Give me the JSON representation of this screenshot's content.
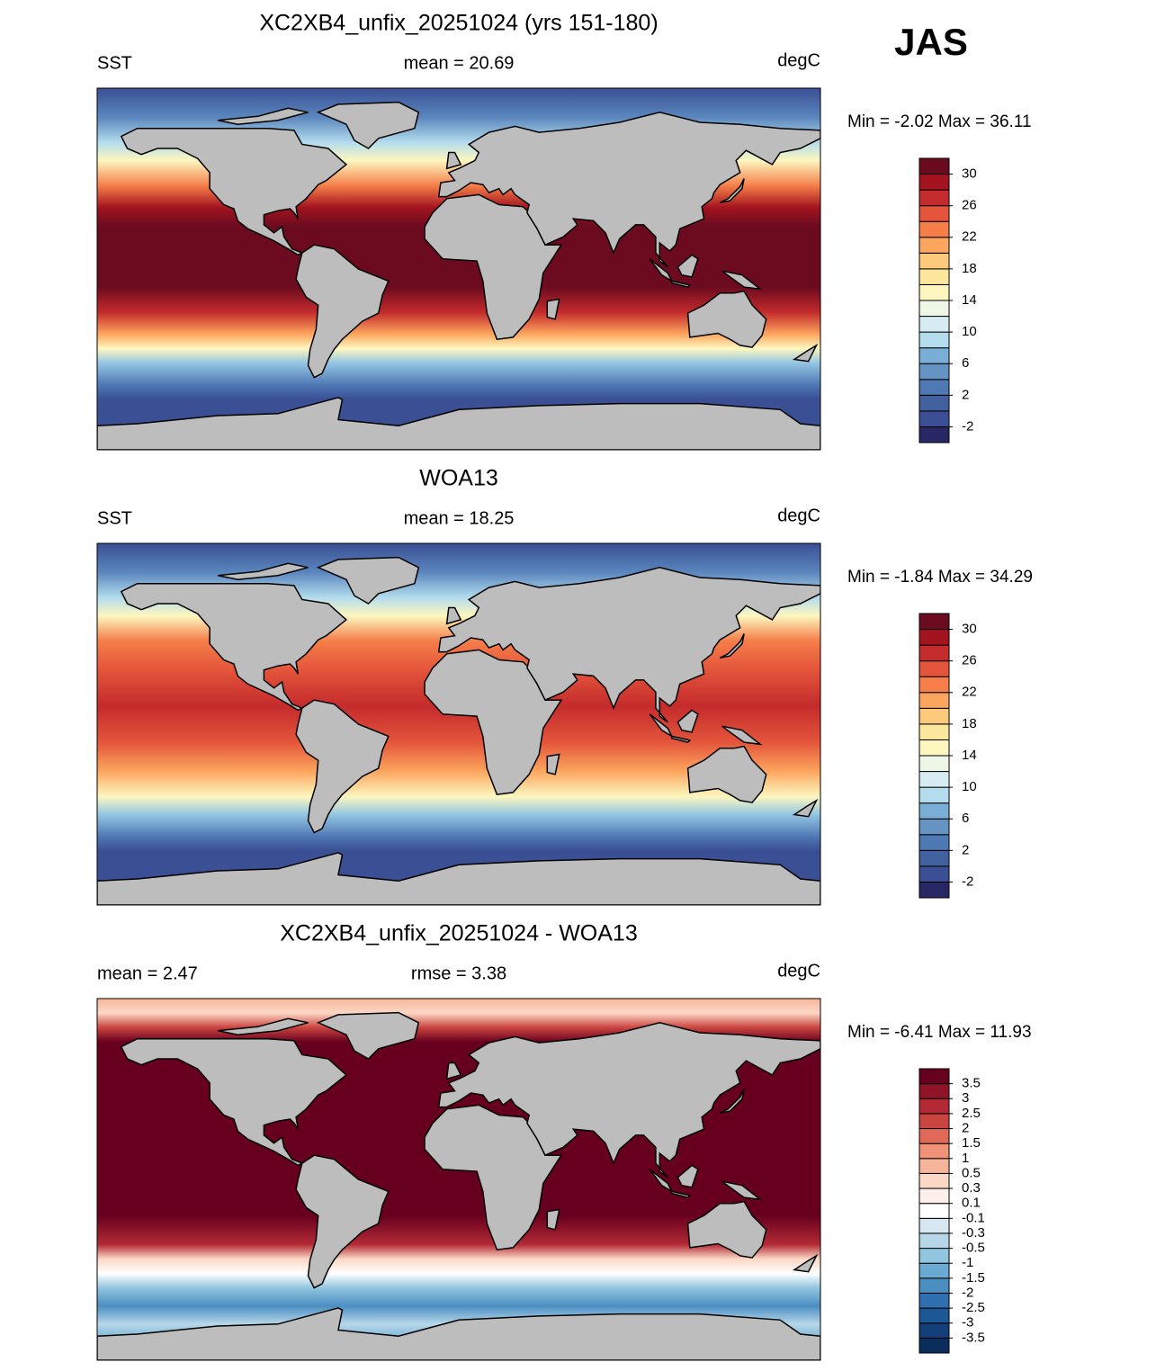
{
  "header": {
    "season": "JAS"
  },
  "panels": [
    {
      "title": "XC2XB4_unfix_20251024 (yrs 151-180)",
      "left_label": "SST",
      "center_label": "mean =  20.69",
      "right_label": "degC",
      "min_max": "Min =  -2.02 Max =  36.11",
      "colorbar": {
        "levels": [
          -2,
          0,
          2,
          4,
          6,
          8,
          10,
          12,
          14,
          16,
          18,
          20,
          22,
          24,
          26,
          28,
          30
        ],
        "ticks": [
          -2,
          2,
          6,
          10,
          14,
          18,
          22,
          26,
          30
        ],
        "colors": [
          "#282766",
          "#3a4f94",
          "#41629f",
          "#4f79b5",
          "#6493c4",
          "#7aaed6",
          "#b3dced",
          "#d6ecf2",
          "#eef6e6",
          "#fdf7bf",
          "#fde79d",
          "#fdc97a",
          "#fca55e",
          "#f57e49",
          "#e4553b",
          "#c42b2c",
          "#a3141f",
          "#6c0b1f"
        ]
      }
    },
    {
      "title": "WOA13",
      "left_label": "SST",
      "center_label": "mean =  18.25",
      "right_label": "degC",
      "min_max": "Min =  -1.84 Max =  34.29",
      "colorbar": {
        "levels": [
          -2,
          0,
          2,
          4,
          6,
          8,
          10,
          12,
          14,
          16,
          18,
          20,
          22,
          24,
          26,
          28,
          30
        ],
        "ticks": [
          -2,
          2,
          6,
          10,
          14,
          18,
          22,
          26,
          30
        ],
        "colors": [
          "#282766",
          "#3a4f94",
          "#41629f",
          "#4f79b5",
          "#6493c4",
          "#7aaed6",
          "#b3dced",
          "#d6ecf2",
          "#eef6e6",
          "#fdf7bf",
          "#fde79d",
          "#fdc97a",
          "#fca55e",
          "#f57e49",
          "#e4553b",
          "#c42b2c",
          "#a3141f",
          "#6c0b1f"
        ]
      }
    },
    {
      "title": "XC2XB4_unfix_20251024 - WOA13",
      "left_label": "mean =   2.47",
      "center_label": "rmse =   3.38",
      "right_label": "degC",
      "min_max": "Min =  -6.41 Max =  11.93",
      "colorbar": {
        "levels": [
          -3.5,
          -3,
          -2.5,
          -2,
          -1.5,
          -1,
          -0.5,
          -0.3,
          -0.1,
          0.1,
          0.3,
          0.5,
          1,
          1.5,
          2,
          2.5,
          3,
          3.5
        ],
        "ticks": [
          -3.5,
          -3,
          -2.5,
          -2,
          -1.5,
          -1,
          -0.5,
          -0.3,
          -0.1,
          0.1,
          0.3,
          0.5,
          1,
          1.5,
          2,
          2.5,
          3,
          3.5
        ],
        "colors": [
          "#0b2d5c",
          "#123e7a",
          "#1c5796",
          "#2f6fb0",
          "#4a8ec2",
          "#6aaad2",
          "#92c5df",
          "#b7d7e8",
          "#d6e7f1",
          "#ffffff",
          "#fdf0ea",
          "#fbd7c5",
          "#f6b59a",
          "#ef9277",
          "#e06a57",
          "#cb4540",
          "#b32a35",
          "#901428",
          "#67001f"
        ]
      }
    }
  ]
}
